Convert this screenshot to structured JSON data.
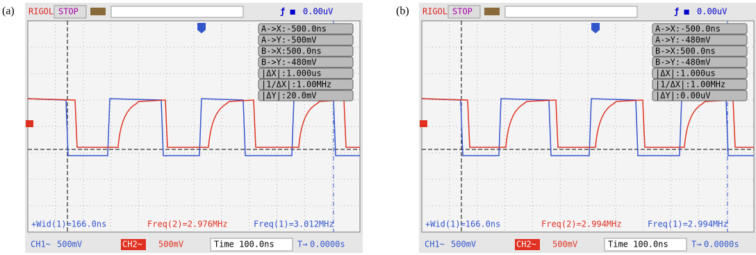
{
  "panels": [
    {
      "label": "(a)",
      "brand": "RIGOL",
      "status": "STOP",
      "trigger_readout": "0.00uV",
      "cursors": [
        "A->X:-500.0ns",
        "A->Y:-500mV",
        "B->X:500.0ns",
        "B->Y:-480mV",
        "|ΔX|:1.000us",
        "|1/ΔX|:1.00MHz",
        "|ΔY|:20.0mV"
      ],
      "measurements": [
        "+Wid(1)=166.0ns",
        "Freq(2)=2.976MHz",
        "Freq(1)=3.012MHz"
      ],
      "ch1": "CH1~",
      "ch1_scale": "500mV",
      "ch2": "CH2~",
      "ch2_scale": "500mV",
      "timebase": "Time 100.0ns",
      "trigger_pos": "0.0000s"
    },
    {
      "label": "(b)",
      "brand": "RIGOL",
      "status": "STOP",
      "trigger_readout": "0.00uV",
      "cursors": [
        "A->X:-500.0ns",
        "A->Y:-480mV",
        "B->X:500.0ns",
        "B->Y:-480mV",
        "|ΔX|:1.000us",
        "|1/ΔX|:1.00MHz",
        "|ΔY|:0.00uV"
      ],
      "measurements": [
        "+Wid(1)=166.0ns",
        "Freq(2)=2.994MHz",
        "Freq(1)=2.994MHz"
      ],
      "ch1": "CH1~",
      "ch1_scale": "500mV",
      "ch2": "CH2~",
      "ch2_scale": "500mV",
      "timebase": "Time 100.0ns",
      "trigger_pos": "0.0000s"
    }
  ]
}
